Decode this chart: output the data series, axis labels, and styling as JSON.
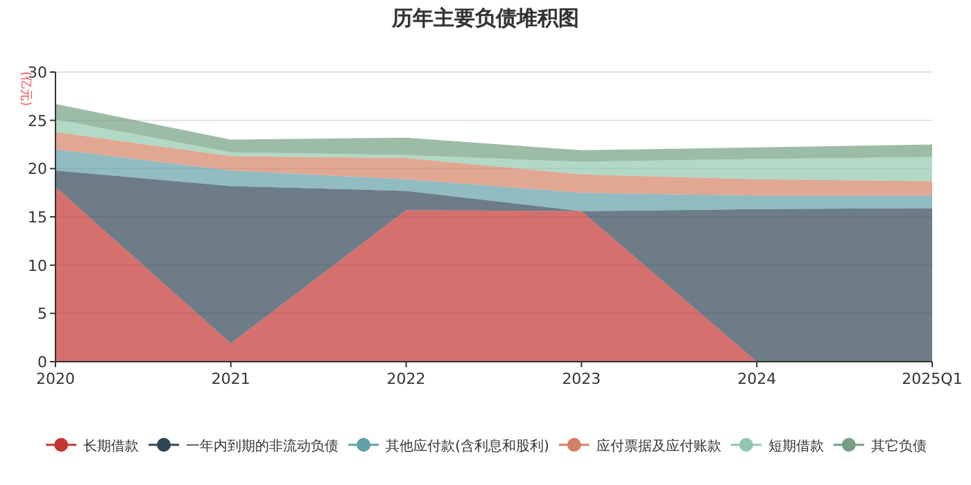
{
  "chart_data": {
    "type": "area",
    "stacked": true,
    "title": "历年主要负债堆积图",
    "ylabel": "(亿元)",
    "categories": [
      "2020",
      "2021",
      "2022",
      "2023",
      "2024",
      "2025Q1"
    ],
    "series": [
      {
        "name": "长期借款",
        "color": "#c23531",
        "values": [
          18.1,
          1.9,
          15.7,
          15.6,
          0,
          0
        ]
      },
      {
        "name": "一年内到期的非流动负债",
        "color": "#2f4554",
        "values": [
          1.7,
          16.3,
          2.0,
          0,
          15.8,
          15.9
        ]
      },
      {
        "name": "其他应付款(含利息和股利)",
        "color": "#61a0a8",
        "values": [
          2.2,
          1.6,
          1.2,
          1.9,
          1.4,
          1.3
        ]
      },
      {
        "name": "应付票据及应付账款",
        "color": "#d48265",
        "values": [
          1.8,
          1.5,
          2.2,
          1.9,
          1.7,
          1.5
        ]
      },
      {
        "name": "短期借款",
        "color": "#91c7ae",
        "values": [
          1.3,
          0.4,
          0.3,
          1.3,
          2.1,
          2.5
        ]
      },
      {
        "name": "其它负债",
        "color": "#749f83",
        "values": [
          1.6,
          1.3,
          1.8,
          1.2,
          1.2,
          1.3
        ]
      }
    ],
    "ylim": [
      0,
      30
    ],
    "yticks": [
      0,
      5,
      10,
      15,
      20,
      25,
      30
    ],
    "grid": "y",
    "legend": "bottom"
  }
}
